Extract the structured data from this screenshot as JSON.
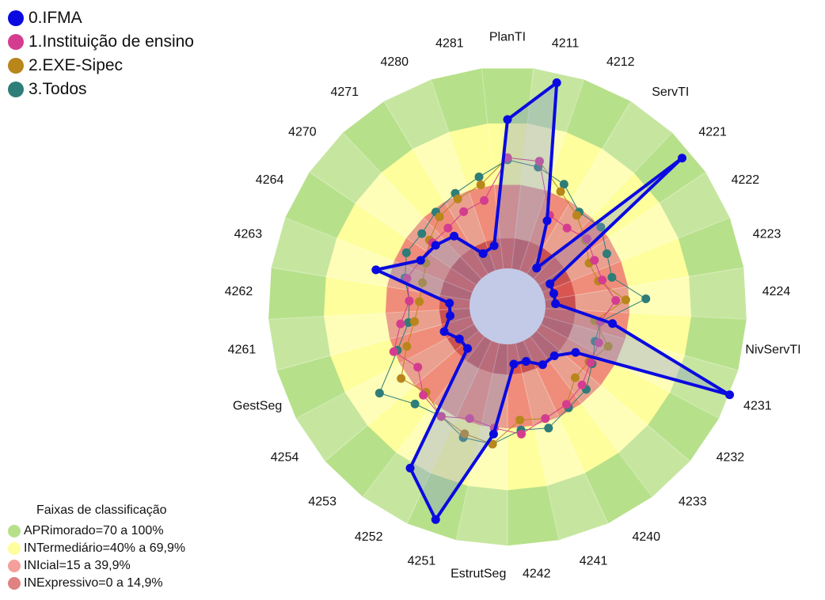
{
  "legend": {
    "items": [
      {
        "label": "0.IFMA",
        "color": "#0a0ae0"
      },
      {
        "label": "1.Instituição de ensino",
        "color": "#d43d8f"
      },
      {
        "label": "2.EXE-Sipec",
        "color": "#b8861b"
      },
      {
        "label": "3.Todos",
        "color": "#2e7d78"
      }
    ]
  },
  "bands": {
    "title": "Faixas de classificação",
    "items": [
      {
        "label": "APRimorado=70 a 100%",
        "color": "#b7e08a"
      },
      {
        "label": "INTermediário=40% a 69,9%",
        "color": "#fefe9c"
      },
      {
        "label": "INIcial=15 a 39,9%",
        "color": "#f4a09a"
      },
      {
        "label": "INExpressivo=0 a 14,9%",
        "color": "#e08282"
      }
    ]
  },
  "chart_data": {
    "type": "radar",
    "title": "",
    "axes": [
      "PlanTI",
      "4211",
      "4212",
      "ServTI",
      "4221",
      "4222",
      "4223",
      "4224",
      "NivServTI",
      "4231",
      "4232",
      "4233",
      "4240",
      "4241",
      "4242",
      "EstrutSeg",
      "4251",
      "4252",
      "4253",
      "4254",
      "GestSeg",
      "4261",
      "4262",
      "4263",
      "4264",
      "4270",
      "4271",
      "4280",
      "4281"
    ],
    "rlim": [
      0,
      100
    ],
    "series": [
      {
        "name": "0.IFMA",
        "color": "#0a0ae0",
        "values": [
          74,
          95,
          28,
          5,
          95,
          5,
          5,
          5,
          34,
          100,
          22,
          15,
          15,
          10,
          10,
          45,
          93,
          75,
          10,
          10,
          15,
          10,
          10,
          49,
          30,
          28,
          25,
          10,
          12
        ]
      },
      {
        "name": "1.Instituição de ensino",
        "color": "#d43d8f",
        "values": [
          55,
          55,
          31,
          30,
          33,
          30,
          30,
          35,
          28,
          30,
          31,
          35,
          38,
          40,
          45,
          42,
          40,
          45,
          42,
          35,
          42,
          35,
          30,
          33,
          30,
          30,
          30,
          33,
          35
        ]
      },
      {
        "name": "2.EXE-Sipec",
        "color": "#b8861b",
        "values": [
          55,
          55,
          44,
          38,
          32,
          27,
          28,
          40,
          25,
          35,
          30,
          30,
          38,
          40,
          38,
          50,
          48,
          45,
          40,
          45,
          35,
          28,
          25,
          25,
          27,
          32,
          37,
          40,
          43
        ]
      },
      {
        "name": "3.Todos",
        "color": "#2e7d78",
        "values": [
          54,
          52,
          48,
          40,
          42,
          37,
          35,
          50,
          28,
          28,
          32,
          38,
          40,
          45,
          43,
          50,
          50,
          45,
          48,
          58,
          40,
          31,
          30,
          34,
          38,
          37,
          40,
          43,
          47
        ]
      }
    ],
    "bands": [
      {
        "from": 0,
        "to": 14.9,
        "name": "INExpressivo"
      },
      {
        "from": 15,
        "to": 39.9,
        "name": "INIcial"
      },
      {
        "from": 40,
        "to": 69.9,
        "name": "INTermediário"
      },
      {
        "from": 70,
        "to": 100,
        "name": "APRimorado"
      }
    ]
  }
}
